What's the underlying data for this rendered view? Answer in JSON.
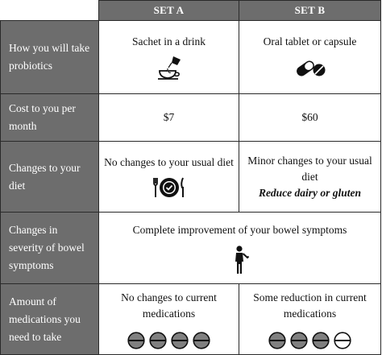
{
  "headers": {
    "set_a": "SET A",
    "set_b": "SET B"
  },
  "rows": [
    {
      "label": "How you will take probiotics",
      "set_a": {
        "text": "Sachet in a drink",
        "icon": "sachet-drink-icon"
      },
      "set_b": {
        "text": "Oral tablet or capsule",
        "icon": "capsule-tablet-icon"
      }
    },
    {
      "label": "Cost to you per month",
      "set_a": {
        "text": "$7"
      },
      "set_b": {
        "text": "$60"
      }
    },
    {
      "label": "Changes to your diet",
      "set_a": {
        "text": "No changes to your usual diet",
        "icon": "plate-cutlery-icon"
      },
      "set_b": {
        "text": "Minor changes to your usual diet",
        "note": "Reduce dairy or gluten"
      }
    },
    {
      "label": "Changes in severity of bowel symptoms",
      "merged": {
        "text": "Complete improvement of your bowel symptoms",
        "icon": "person-standing-icon"
      }
    },
    {
      "label": "Amount of medications you need to take",
      "set_a": {
        "text": "No changes to current medications",
        "pills": [
          "full",
          "full",
          "full",
          "full"
        ],
        "icon": "pill-icon"
      },
      "set_b": {
        "text": "Some reduction in current medications",
        "pills": [
          "full",
          "full",
          "full",
          "empty"
        ],
        "icon": "pill-icon"
      }
    }
  ],
  "colors": {
    "header_bg": "#6d6d6d",
    "header_text": "#ffffff",
    "border": "#2a2a2a",
    "pill_full": "#808080"
  }
}
